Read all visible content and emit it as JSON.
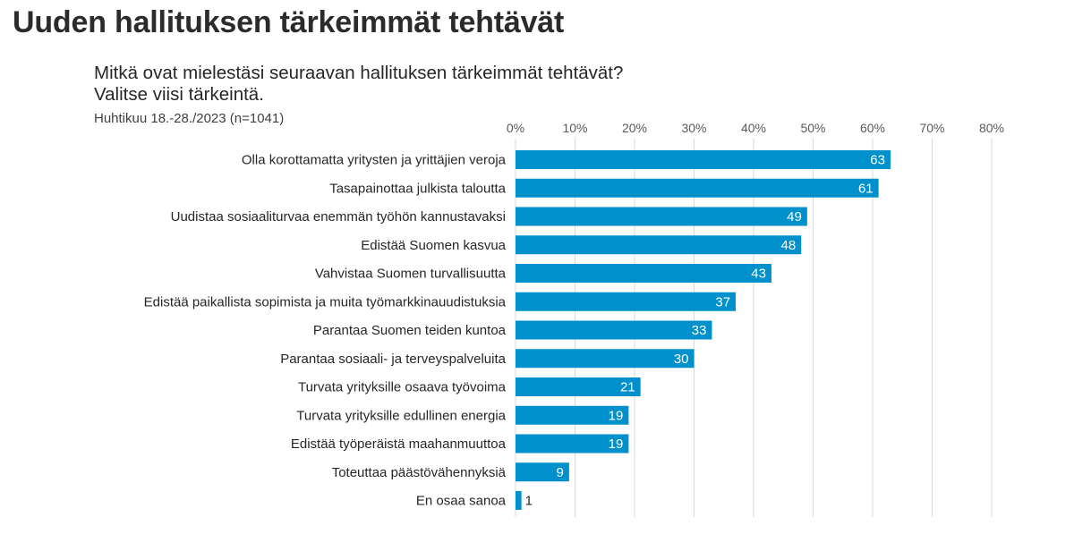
{
  "page": {
    "title": "Uuden hallituksen tärkeimmät tehtävät",
    "question_line1": "Mitkä ovat mielestäsi seuraavan hallituksen tärkeimmät tehtävät?",
    "question_line2": "Valitse viisi tärkeintä.",
    "survey_info": "Huhtikuu 18.-28./2023 (n=1041)"
  },
  "colors": {
    "bar": "#0090CC",
    "grid": "#D9D9D9",
    "value_inside": "#ffffff",
    "value_outside": "#262626"
  },
  "chart_data": {
    "type": "bar",
    "orientation": "horizontal",
    "title": "Mitkä ovat mielestäsi seuraavan hallituksen tärkeimmät tehtävät? Valitse viisi tärkeintä.",
    "xlabel": "",
    "ylabel": "",
    "xlim": [
      0,
      80
    ],
    "x_ticks": [
      0,
      10,
      20,
      30,
      40,
      50,
      60,
      70,
      80
    ],
    "x_tick_labels": [
      "0%",
      "10%",
      "20%",
      "30%",
      "40%",
      "50%",
      "60%",
      "70%",
      "80%"
    ],
    "x_axis_position": "top",
    "grid": true,
    "legend": "none",
    "categories": [
      "Olla korottamatta yritysten ja yrittäjien veroja",
      "Tasapainottaa julkista taloutta",
      "Uudistaa sosiaaliturvaa enemmän työhön kannustavaksi",
      "Edistää Suomen kasvua",
      "Vahvistaa Suomen turvallisuutta",
      "Edistää paikallista sopimista ja muita työmarkkinauudistuksia",
      "Parantaa Suomen teiden kuntoa",
      "Parantaa sosiaali- ja terveyspalveluita",
      "Turvata yrityksille osaava työvoima",
      "Turvata yrityksille edullinen energia",
      "Edistää työperäistä maahanmuuttoa",
      "Toteuttaa päästövähennyksiä",
      "En osaa sanoa"
    ],
    "values": [
      63,
      61,
      49,
      48,
      43,
      37,
      33,
      30,
      21,
      19,
      19,
      9,
      1
    ]
  }
}
